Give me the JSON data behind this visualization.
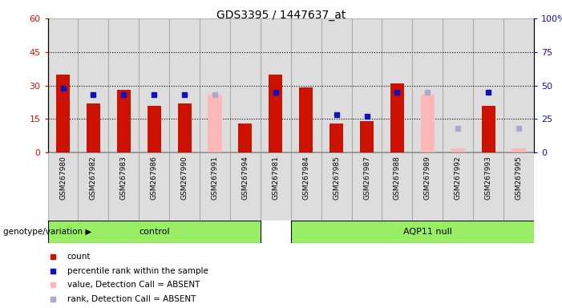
{
  "title": "GDS3395 / 1447637_at",
  "samples": [
    "GSM267980",
    "GSM267982",
    "GSM267983",
    "GSM267986",
    "GSM267990",
    "GSM267991",
    "GSM267994",
    "GSM267981",
    "GSM267984",
    "GSM267985",
    "GSM267987",
    "GSM267988",
    "GSM267989",
    "GSM267992",
    "GSM267993",
    "GSM267995"
  ],
  "groups": [
    "control",
    "control",
    "control",
    "control",
    "control",
    "control",
    "control",
    "AQP11 null",
    "AQP11 null",
    "AQP11 null",
    "AQP11 null",
    "AQP11 null",
    "AQP11 null",
    "AQP11 null",
    "AQP11 null",
    "AQP11 null"
  ],
  "red_count": [
    35,
    22,
    28,
    21,
    22,
    0,
    13,
    35,
    29,
    13,
    14,
    31,
    0,
    0,
    21,
    0
  ],
  "pink_count": [
    0,
    0,
    0,
    0,
    0,
    26,
    0,
    0,
    0,
    0,
    0,
    0,
    26,
    2,
    0,
    2
  ],
  "blue_rank": [
    48,
    43,
    43,
    43,
    43,
    0,
    0,
    45,
    0,
    28,
    27,
    45,
    0,
    0,
    45,
    0
  ],
  "lightblue_rank": [
    0,
    0,
    0,
    0,
    0,
    43,
    0,
    0,
    0,
    0,
    0,
    0,
    45,
    18,
    0,
    18
  ],
  "ylim_left": [
    0,
    60
  ],
  "ylim_right": [
    0,
    100
  ],
  "yticks_left": [
    0,
    15,
    30,
    45,
    60
  ],
  "yticks_right": [
    0,
    25,
    50,
    75,
    100
  ],
  "ytick_labels_left": [
    "0",
    "15",
    "30",
    "45",
    "60"
  ],
  "ytick_labels_right": [
    "0",
    "25",
    "50",
    "75",
    "100%"
  ],
  "red_color": "#CC1100",
  "pink_color": "#FFB8B8",
  "blue_color": "#1111BB",
  "lightblue_color": "#AAAACC",
  "group_bg_color": "#99EE66",
  "sample_bg_color": "#DDDDDD",
  "legend_items": [
    "count",
    "percentile rank within the sample",
    "value, Detection Call = ABSENT",
    "rank, Detection Call = ABSENT"
  ],
  "ctrl_count": 7,
  "aqp_count": 9
}
